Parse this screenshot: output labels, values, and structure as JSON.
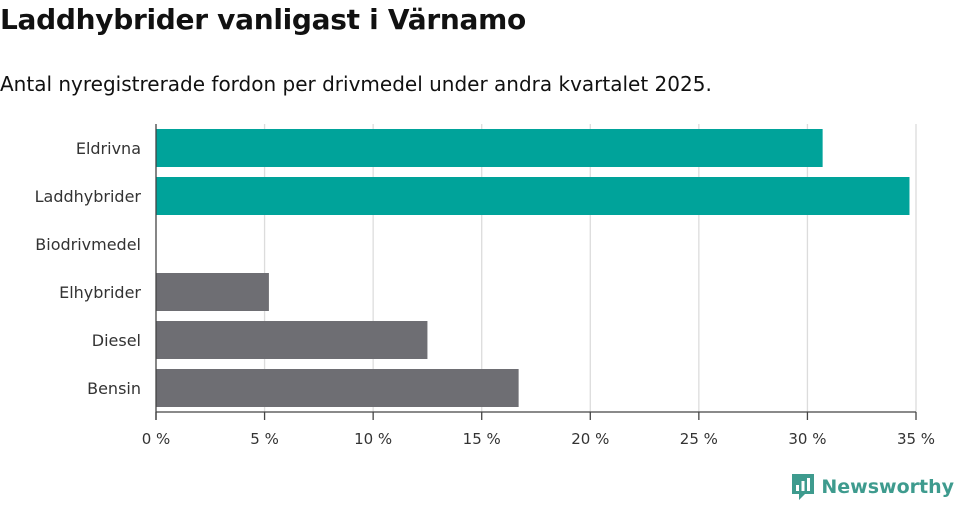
{
  "header": {
    "title": "Laddhybrider vanligast i Värnamo",
    "subtitle": "Antal nyregistrerade fordon per drivmedel under andra kvartalet 2025."
  },
  "brand": {
    "name": "Newsworthy",
    "icon": "newsworthy-logo-icon",
    "color": "#3e9b8e"
  },
  "chart_data": {
    "type": "bar",
    "orientation": "horizontal",
    "title": "Laddhybrider vanligast i Värnamo",
    "subtitle": "Antal nyregistrerade fordon per drivmedel under andra kvartalet 2025.",
    "categories": [
      "Eldrivna",
      "Laddhybrider",
      "Biodrivmedel",
      "Elhybrider",
      "Diesel",
      "Bensin"
    ],
    "values": [
      30.7,
      34.7,
      0,
      5.2,
      12.5,
      16.7
    ],
    "colors": [
      "#00a39a",
      "#00a39a",
      "#00a39a",
      "#6e6e73",
      "#6e6e73",
      "#6e6e73"
    ],
    "xlim": [
      0,
      35
    ],
    "xticks": [
      0,
      5,
      10,
      15,
      20,
      25,
      30,
      35
    ],
    "xtick_labels": [
      "0 %",
      "5 %",
      "10 %",
      "15 %",
      "20 %",
      "25 %",
      "30 %",
      "35 %"
    ],
    "grid": true,
    "legend": "none"
  }
}
